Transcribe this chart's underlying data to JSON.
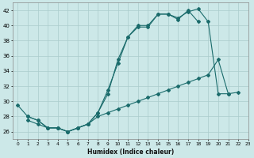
{
  "xlabel": "Humidex (Indice chaleur)",
  "bg_color": "#cce8e8",
  "grid_color": "#aacccc",
  "line_color": "#1a6b6b",
  "xlim": [
    -0.5,
    23
  ],
  "ylim": [
    25,
    43
  ],
  "xticks": [
    0,
    1,
    2,
    3,
    4,
    5,
    6,
    7,
    8,
    9,
    10,
    11,
    12,
    13,
    14,
    15,
    16,
    17,
    18,
    19,
    20,
    21,
    22,
    23
  ],
  "yticks": [
    26,
    28,
    30,
    32,
    34,
    36,
    38,
    40,
    42
  ],
  "line1_x": [
    0,
    1,
    2,
    3,
    4,
    5,
    6,
    7,
    8,
    9,
    10,
    11,
    12,
    13,
    14,
    15,
    16,
    17,
    18
  ],
  "line1_y": [
    29.5,
    28.0,
    27.5,
    26.5,
    26.5,
    26.0,
    26.5,
    27.0,
    28.5,
    31.0,
    35.5,
    38.5,
    39.8,
    39.8,
    41.5,
    41.5,
    40.8,
    42.0,
    40.5
  ],
  "line2_x": [
    1,
    2,
    3,
    4,
    5,
    6,
    7,
    8,
    9,
    10,
    11,
    12,
    13,
    14,
    15,
    16,
    17,
    18,
    19,
    20,
    21
  ],
  "line2_y": [
    28.0,
    27.5,
    26.5,
    26.5,
    26.0,
    26.5,
    27.0,
    28.5,
    31.5,
    35.0,
    38.5,
    40.0,
    40.0,
    41.5,
    41.5,
    41.0,
    41.8,
    42.2,
    40.5,
    31.0,
    31.0
  ],
  "line3_x": [
    1,
    2,
    3,
    4,
    5,
    6,
    7,
    8,
    9,
    10,
    11,
    12,
    13,
    14,
    15,
    16,
    17,
    18,
    19,
    20,
    21,
    22
  ],
  "line3_y": [
    27.5,
    27.0,
    26.5,
    26.5,
    26.0,
    26.5,
    27.0,
    28.0,
    28.5,
    29.0,
    29.5,
    30.0,
    30.5,
    31.0,
    31.5,
    32.0,
    32.5,
    33.0,
    33.5,
    35.5,
    31.0,
    31.2
  ]
}
